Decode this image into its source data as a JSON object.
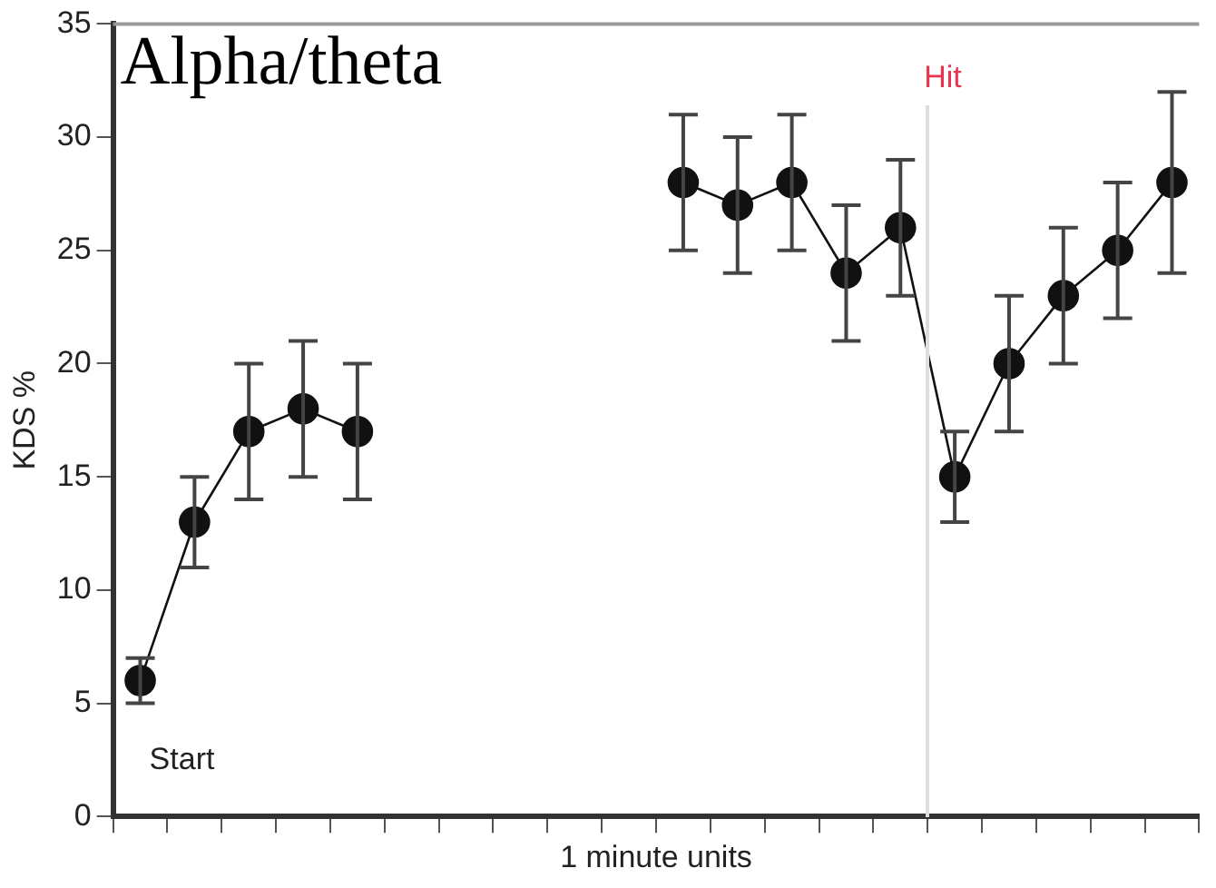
{
  "chart_data": {
    "type": "line",
    "title": "Alpha/theta",
    "xlabel": "1 minute units",
    "ylabel": "KDS %",
    "categories": [
      null,
      null,
      null,
      null,
      null,
      null,
      null,
      null,
      null,
      null,
      null,
      null,
      null,
      null,
      null,
      null,
      null,
      null,
      null,
      null
    ],
    "series": [
      {
        "color": "#111111",
        "values": [
          6,
          13,
          17,
          18,
          17,
          null,
          null,
          null,
          null,
          null,
          null,
          null,
          null,
          null,
          null,
          null,
          null,
          null,
          null,
          null
        ],
        "errors": [
          1,
          2,
          3,
          3,
          3,
          null,
          null,
          null,
          null,
          null,
          null,
          null,
          null,
          null,
          null,
          null,
          null,
          null,
          null,
          null
        ]
      },
      {
        "color": "#111111",
        "values": [
          null,
          null,
          null,
          null,
          null,
          null,
          null,
          null,
          null,
          null,
          28,
          27,
          28,
          24,
          26,
          15,
          20,
          23,
          25,
          28
        ],
        "errors": [
          null,
          null,
          null,
          null,
          null,
          null,
          null,
          null,
          null,
          null,
          3,
          3,
          3,
          3,
          3,
          2,
          3,
          3,
          3,
          4
        ]
      }
    ],
    "ylim": [
      0,
      35
    ],
    "yticks": [
      0,
      5,
      10,
      15,
      20,
      25,
      30,
      35
    ],
    "tick_labels": "y",
    "grid": false,
    "legend": false,
    "marker": "circle",
    "line_style": "solid",
    "annotations": [
      "Start",
      "Hit"
    ]
  }
}
